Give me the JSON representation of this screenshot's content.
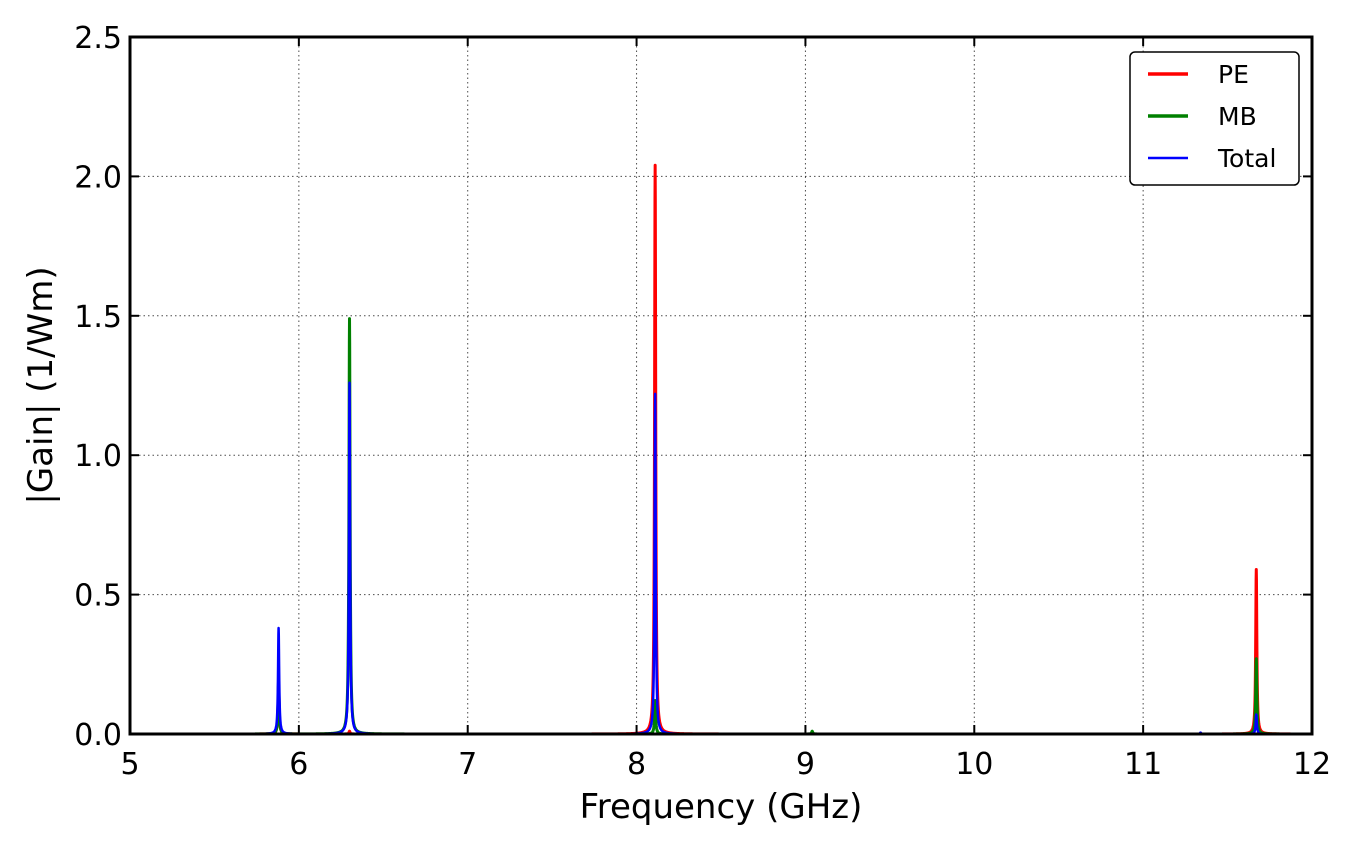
{
  "chart_data": {
    "type": "line",
    "title": "",
    "xlabel": "Frequency (GHz)",
    "ylabel": "|Gain| (1/Wm)",
    "xlim": [
      5,
      12
    ],
    "ylim": [
      0,
      2.5
    ],
    "xticks": [
      5,
      6,
      7,
      8,
      9,
      10,
      11,
      12
    ],
    "yticks": [
      0.0,
      0.5,
      1.0,
      1.5,
      2.0,
      2.5
    ],
    "grid": true,
    "legend_position": "top-right",
    "series": [
      {
        "name": "PE",
        "color": "#ff0000",
        "peaks": [
          {
            "x": 5.88,
            "y": 0.18
          },
          {
            "x": 6.3,
            "y": 0.01
          },
          {
            "x": 8.11,
            "y": 2.04
          },
          {
            "x": 11.67,
            "y": 0.59
          }
        ]
      },
      {
        "name": "MB",
        "color": "#008000",
        "peaks": [
          {
            "x": 5.88,
            "y": 0.19
          },
          {
            "x": 6.3,
            "y": 1.49
          },
          {
            "x": 8.11,
            "y": 0.12
          },
          {
            "x": 9.04,
            "y": 0.01
          },
          {
            "x": 11.67,
            "y": 0.27
          }
        ]
      },
      {
        "name": "Total",
        "color": "#0000ff",
        "peaks": [
          {
            "x": 5.88,
            "y": 0.38
          },
          {
            "x": 6.3,
            "y": 1.26
          },
          {
            "x": 8.11,
            "y": 1.22
          },
          {
            "x": 11.34,
            "y": 0.005
          },
          {
            "x": 11.67,
            "y": 0.07
          }
        ]
      }
    ]
  }
}
